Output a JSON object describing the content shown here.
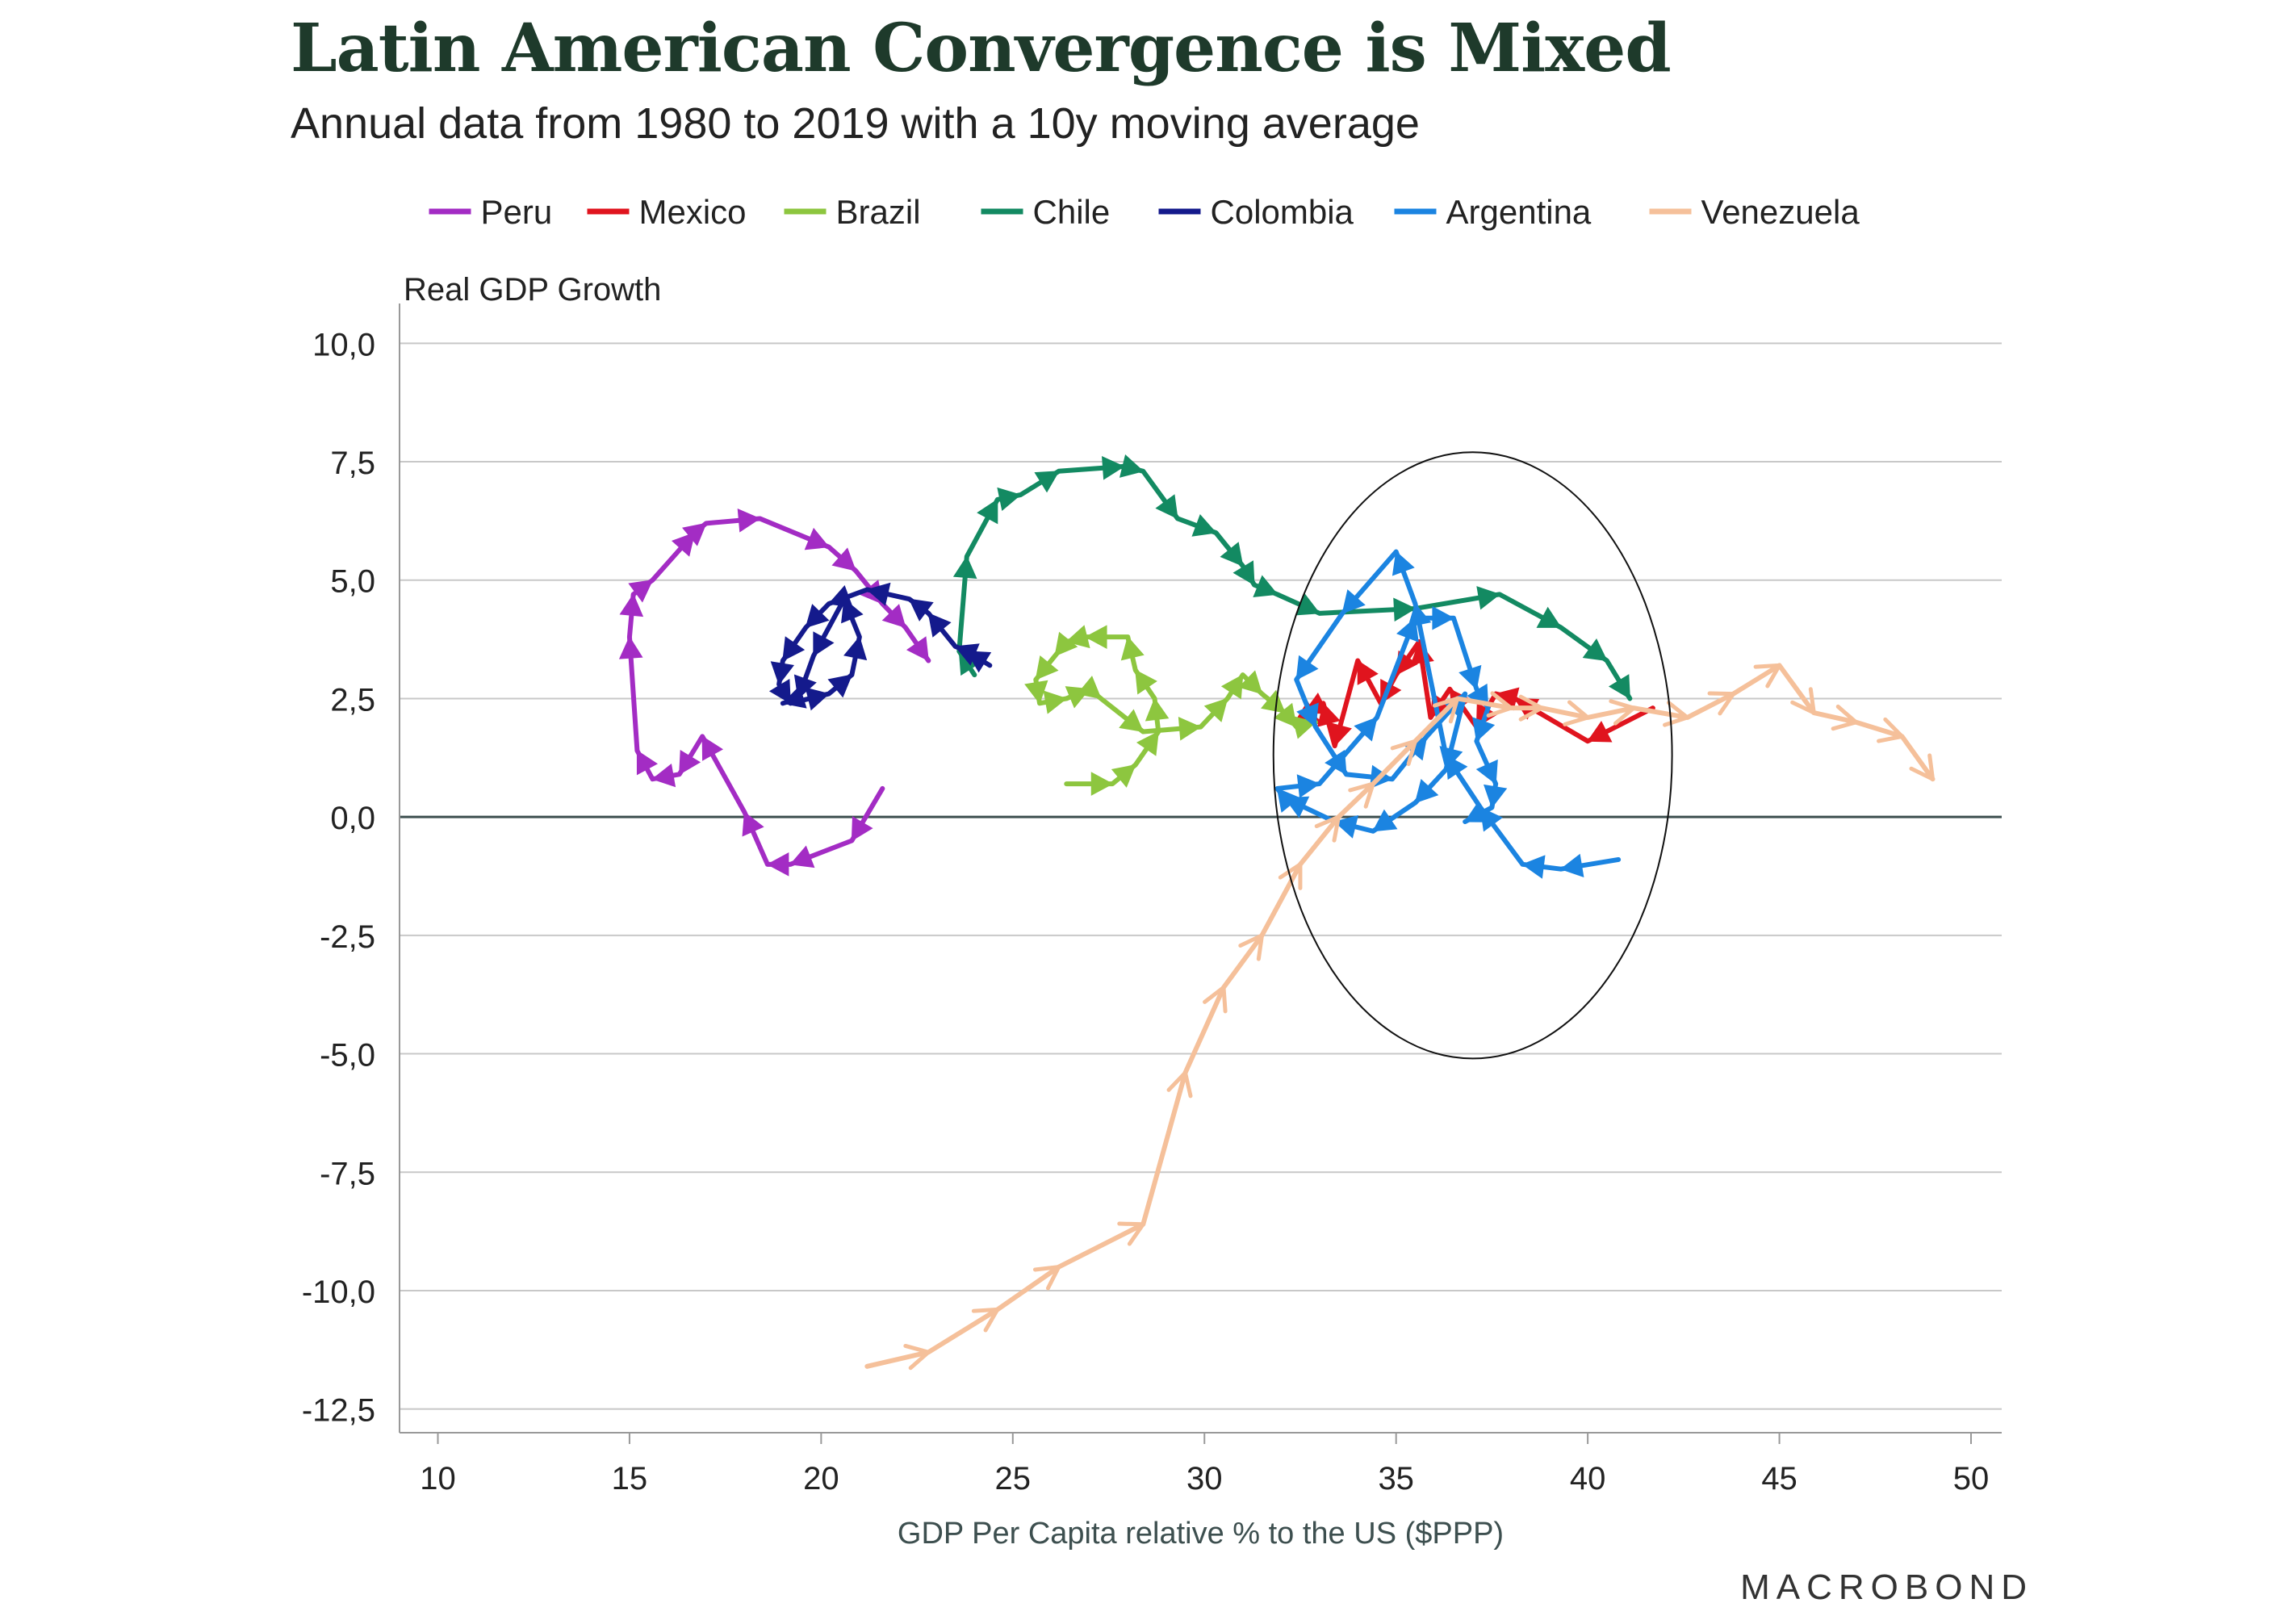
{
  "header": {
    "title": "Latin American Convergence is Mixed",
    "subtitle": "Annual data from 1980 to 2019 with a 10y moving average"
  },
  "branding": {
    "logo": "MACROBOND"
  },
  "chart_data": {
    "type": "scatter",
    "variant": "connected-scatter-with-direction-arrows",
    "xlabel": "GDP Per Capita relative % to the US ($PPP)",
    "ylabel": "Real GDP Growth",
    "xlim": [
      9,
      50.8
    ],
    "ylim": [
      -13,
      10.5
    ],
    "x_ticks": [
      10,
      15,
      20,
      25,
      30,
      35,
      40,
      45,
      50
    ],
    "y_ticks": [
      10,
      7.5,
      5,
      2.5,
      0,
      -2.5,
      -5,
      -7.5,
      -10,
      -12.5
    ],
    "x_tick_labels": [
      "10",
      "15",
      "20",
      "25",
      "30",
      "35",
      "40",
      "45",
      "50"
    ],
    "y_tick_labels": [
      "10,0",
      "7,5",
      "5,0",
      "2,5",
      "0,0",
      "-2,5",
      "-5,0",
      "-7,5",
      "-10,0",
      "-12,5"
    ],
    "grid": "horizontal",
    "legend_position": "top",
    "zero_line": true,
    "highlight_ellipse": {
      "center": [
        37.0,
        1.3
      ],
      "x_radius": 5.2,
      "y_radius": 6.4
    },
    "series": [
      {
        "name": "Peru",
        "color": "#a32cc4",
        "points": [
          [
            21.6,
            0.6
          ],
          [
            20.8,
            -0.5
          ],
          [
            19.2,
            -1.0
          ],
          [
            18.6,
            -1.0
          ],
          [
            18.0,
            0.1
          ],
          [
            16.9,
            1.7
          ],
          [
            16.3,
            0.9
          ],
          [
            15.6,
            0.8
          ],
          [
            15.2,
            1.4
          ],
          [
            15.0,
            3.8
          ],
          [
            15.1,
            4.7
          ],
          [
            15.6,
            5.0
          ],
          [
            16.7,
            6.0
          ],
          [
            17.0,
            6.2
          ],
          [
            18.4,
            6.3
          ],
          [
            20.2,
            5.7
          ],
          [
            20.9,
            5.2
          ],
          [
            21.6,
            4.5
          ],
          [
            22.2,
            4.0
          ],
          [
            22.8,
            3.3
          ]
        ]
      },
      {
        "name": "Mexico",
        "color": "#e0141e",
        "points": [
          [
            41.7,
            2.3
          ],
          [
            40.0,
            1.6
          ],
          [
            38.1,
            2.5
          ],
          [
            37.6,
            2.6
          ],
          [
            37.1,
            1.9
          ],
          [
            36.4,
            2.7
          ],
          [
            35.9,
            2.1
          ],
          [
            35.6,
            3.7
          ],
          [
            35.0,
            3.0
          ],
          [
            34.6,
            2.4
          ],
          [
            34.0,
            3.3
          ],
          [
            33.4,
            1.5
          ],
          [
            33.1,
            2.4
          ],
          [
            32.6,
            2.2
          ],
          [
            33.0,
            2.0
          ]
        ]
      },
      {
        "name": "Brazil",
        "color": "#8dc63f",
        "points": [
          [
            26.4,
            0.7
          ],
          [
            27.6,
            0.7
          ],
          [
            28.2,
            1.1
          ],
          [
            28.8,
            1.8
          ],
          [
            28.7,
            2.5
          ],
          [
            28.2,
            3.1
          ],
          [
            28.0,
            3.8
          ],
          [
            26.9,
            3.8
          ],
          [
            26.4,
            3.7
          ],
          [
            26.1,
            3.4
          ],
          [
            25.6,
            2.9
          ],
          [
            25.7,
            2.4
          ],
          [
            26.4,
            2.5
          ],
          [
            27.0,
            2.7
          ],
          [
            27.3,
            2.5
          ],
          [
            28.4,
            1.8
          ],
          [
            29.9,
            1.9
          ],
          [
            30.6,
            2.5
          ],
          [
            31.0,
            3.0
          ],
          [
            31.5,
            2.6
          ],
          [
            32.1,
            2.2
          ],
          [
            32.4,
            1.9
          ],
          [
            32.9,
            2.0
          ]
        ]
      },
      {
        "name": "Chile",
        "color": "#138a62",
        "points": [
          [
            24.0,
            3.0
          ],
          [
            23.6,
            3.5
          ],
          [
            23.8,
            5.5
          ],
          [
            24.6,
            6.7
          ],
          [
            25.2,
            6.8
          ],
          [
            26.2,
            7.3
          ],
          [
            27.9,
            7.4
          ],
          [
            28.4,
            7.3
          ],
          [
            29.3,
            6.3
          ],
          [
            30.3,
            6.0
          ],
          [
            31.0,
            5.3
          ],
          [
            31.3,
            4.9
          ],
          [
            31.9,
            4.7
          ],
          [
            33.0,
            4.3
          ],
          [
            35.5,
            4.4
          ],
          [
            37.7,
            4.7
          ],
          [
            39.3,
            4.0
          ],
          [
            40.5,
            3.3
          ],
          [
            41.1,
            2.5
          ]
        ]
      },
      {
        "name": "Colombia",
        "color": "#141a8c",
        "points": [
          [
            24.4,
            3.2
          ],
          [
            23.8,
            3.5
          ],
          [
            23.5,
            3.6
          ],
          [
            22.8,
            4.3
          ],
          [
            22.3,
            4.6
          ],
          [
            21.2,
            4.8
          ],
          [
            20.2,
            4.5
          ],
          [
            19.6,
            4.0
          ],
          [
            19.0,
            3.3
          ],
          [
            18.9,
            2.8
          ],
          [
            19.2,
            2.4
          ],
          [
            20.2,
            2.6
          ],
          [
            20.8,
            3.0
          ],
          [
            21.0,
            3.8
          ],
          [
            20.6,
            4.6
          ],
          [
            19.8,
            3.4
          ],
          [
            19.4,
            2.5
          ],
          [
            19.0,
            2.4
          ]
        ]
      },
      {
        "name": "Argentina",
        "color": "#1b84e1",
        "points": [
          [
            40.8,
            -0.9
          ],
          [
            39.3,
            -1.1
          ],
          [
            38.3,
            -1.0
          ],
          [
            37.2,
            0.2
          ],
          [
            36.3,
            1.3
          ],
          [
            35.5,
            4.5
          ],
          [
            35.0,
            5.6
          ],
          [
            33.6,
            4.3
          ],
          [
            32.4,
            2.9
          ],
          [
            32.9,
            1.9
          ],
          [
            33.7,
            0.9
          ],
          [
            34.9,
            0.8
          ],
          [
            35.8,
            1.7
          ],
          [
            36.8,
            2.6
          ],
          [
            36.3,
            1.0
          ],
          [
            35.5,
            0.3
          ],
          [
            34.4,
            -0.3
          ],
          [
            33.4,
            -0.1
          ],
          [
            32.1,
            0.4
          ],
          [
            31.9,
            0.6
          ],
          [
            33.0,
            0.7
          ],
          [
            34.5,
            2.1
          ],
          [
            35.5,
            4.2
          ],
          [
            36.5,
            4.2
          ],
          [
            37.1,
            2.7
          ],
          [
            37.4,
            2.3
          ],
          [
            37.1,
            1.6
          ],
          [
            37.6,
            0.7
          ],
          [
            37.5,
            0.2
          ],
          [
            36.8,
            -0.1
          ]
        ]
      },
      {
        "name": "Venezuela",
        "color": "#f5c09a",
        "points": [
          [
            21.2,
            -11.6
          ],
          [
            22.8,
            -11.3
          ],
          [
            24.6,
            -10.4
          ],
          [
            26.2,
            -9.5
          ],
          [
            28.4,
            -8.6
          ],
          [
            29.5,
            -5.4
          ],
          [
            30.5,
            -3.6
          ],
          [
            31.5,
            -2.5
          ],
          [
            32.5,
            -1.0
          ],
          [
            33.5,
            0.0
          ],
          [
            34.4,
            0.7
          ],
          [
            35.5,
            1.6
          ],
          [
            36.6,
            2.5
          ],
          [
            38.0,
            2.3
          ],
          [
            38.8,
            2.3
          ],
          [
            40.0,
            2.1
          ],
          [
            41.2,
            2.3
          ],
          [
            42.6,
            2.1
          ],
          [
            43.8,
            2.6
          ],
          [
            45.0,
            3.2
          ],
          [
            45.9,
            2.2
          ],
          [
            47.0,
            2.0
          ],
          [
            48.2,
            1.7
          ],
          [
            49.0,
            0.8
          ]
        ]
      }
    ]
  }
}
